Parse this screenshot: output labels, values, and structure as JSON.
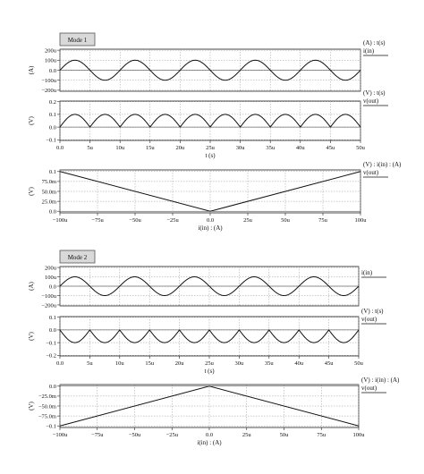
{
  "chart_data": [
    {
      "mode": "Mode 1",
      "plots": [
        {
          "type": "line",
          "function": "sine",
          "amplitude": 0.0001,
          "period": 10,
          "yticks": [
            {
              "v": 0.0002,
              "t": "200u"
            },
            {
              "v": 0.0001,
              "t": "100u"
            },
            {
              "v": 0,
              "t": "0.0"
            },
            {
              "v": -0.0001,
              "t": "−100u"
            },
            {
              "v": -0.0002,
              "t": "−200u"
            }
          ],
          "ylim": [
            -0.00021,
            0.00021
          ],
          "ylabel": "(A)",
          "legend_title": "(A) : t(s)",
          "series": [
            {
              "name": "i(in)"
            }
          ],
          "showX": false
        },
        {
          "type": "line",
          "function": "abs_sine",
          "amplitude": 0.1,
          "period": 10,
          "yticks": [
            {
              "v": 0.2,
              "t": "0.2"
            },
            {
              "v": 0.1,
              "t": "0.1"
            },
            {
              "v": 0,
              "t": "0.0"
            },
            {
              "v": -0.1,
              "t": "−0.1"
            }
          ],
          "ylim": [
            -0.105,
            0.205
          ],
          "ylabel": "(V)",
          "legend_title": "(V) : t(s)",
          "series": [
            {
              "name": "v(out)"
            }
          ],
          "showX": true,
          "xticks": [
            "0.0",
            "5u",
            "10u",
            "15u",
            "20u",
            "25u",
            "30u",
            "35u",
            "40u",
            "45u",
            "50u"
          ],
          "xlabel": "t (s)"
        },
        {
          "type": "line",
          "function": "v_abs",
          "slope": 1000,
          "yticks": [
            {
              "v": 0.1,
              "t": "0.1"
            },
            {
              "v": 0.075,
              "t": "75.0m"
            },
            {
              "v": 0.05,
              "t": "50.0m"
            },
            {
              "v": 0.025,
              "t": "25.0m"
            },
            {
              "v": 0,
              "t": "0.0"
            }
          ],
          "ylim": [
            -0.004,
            0.104
          ],
          "ylabel": "(V)",
          "legend_title": "(V) : i(in) : (A)",
          "series": [
            {
              "name": "v(out)"
            }
          ],
          "showX": true,
          "xticks": [
            "−100u",
            "−75u",
            "−50u",
            "−25u",
            "0.0",
            "25u",
            "50u",
            "75u",
            "100u"
          ],
          "xlabel": "i(in) : (A)"
        }
      ]
    },
    {
      "mode": "Mode 2",
      "plots": [
        {
          "type": "line",
          "function": "sine",
          "amplitude": 0.0001,
          "period": 10,
          "yticks": [
            {
              "v": 0.0002,
              "t": "200u"
            },
            {
              "v": 0.0001,
              "t": "100u"
            },
            {
              "v": 0,
              "t": "0.0"
            },
            {
              "v": -0.0001,
              "t": "−100u"
            },
            {
              "v": -0.0002,
              "t": "−200u"
            }
          ],
          "ylim": [
            -0.00021,
            0.00021
          ],
          "ylabel": "(A)",
          "legend_title": "",
          "series": [
            {
              "name": "i(in)"
            }
          ],
          "showX": false
        },
        {
          "type": "line",
          "function": "neg_abs_sine",
          "amplitude": 0.1,
          "period": 10,
          "yticks": [
            {
              "v": 0.1,
              "t": "0.1"
            },
            {
              "v": 0,
              "t": "0.0"
            },
            {
              "v": -0.1,
              "t": "−0.1"
            },
            {
              "v": -0.2,
              "t": "−0.2"
            }
          ],
          "ylim": [
            -0.205,
            0.105
          ],
          "ylabel": "(V)",
          "legend_title": "(V) : t(s)",
          "series": [
            {
              "name": "v(out)"
            }
          ],
          "showX": true,
          "xticks": [
            "0.0",
            "5u",
            "10u",
            "15u",
            "20u",
            "25u",
            "30u",
            "35u",
            "40u",
            "45u",
            "50u"
          ],
          "xlabel": "t (s)"
        },
        {
          "type": "line",
          "function": "neg_v_abs",
          "slope": 1000,
          "yticks": [
            {
              "v": 0,
              "t": "0.0"
            },
            {
              "v": -0.025,
              "t": "−25.0m"
            },
            {
              "v": -0.05,
              "t": "−50.0m"
            },
            {
              "v": -0.075,
              "t": "−75.0m"
            },
            {
              "v": -0.1,
              "t": "−0.1"
            }
          ],
          "ylim": [
            -0.104,
            0.004
          ],
          "ylabel": "(V)",
          "legend_title": "(V) : i(in) : (A)",
          "series": [
            {
              "name": "v(out)"
            }
          ],
          "showX": true,
          "xticks": [
            "−100u",
            "−75u",
            "−50u",
            "−25u",
            "0.0",
            "25u",
            "50u",
            "75u",
            "100u"
          ],
          "xlabel": "i(in) : (A)"
        }
      ]
    }
  ]
}
